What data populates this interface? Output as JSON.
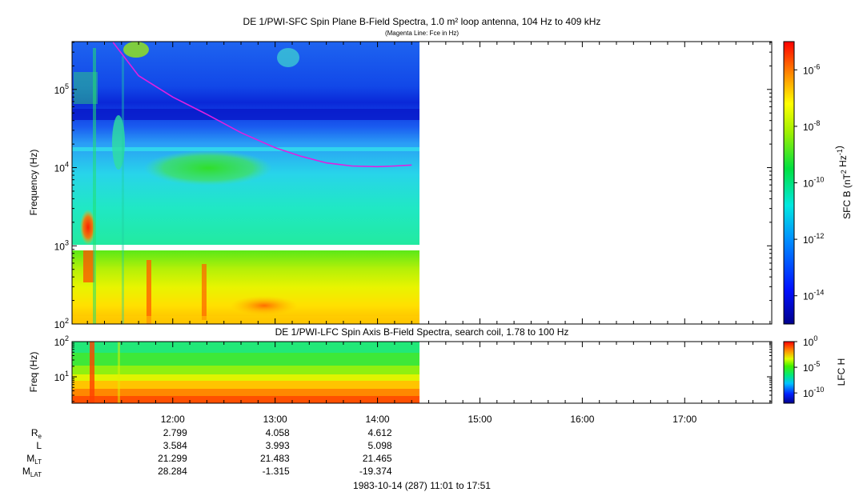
{
  "chart_data": [
    {
      "type": "heatmap",
      "title": "DE 1/PWI-SFC  Spin Plane B-Field Spectra, 1.0 m² loop antenna, 104 Hz to 409 kHz",
      "subtitle": "(Magenta Line: Fce in Hz)",
      "ylabel": "Frequency (Hz)",
      "yscale": "log",
      "ylim": [
        100,
        409000
      ],
      "ytick_labels": [
        "10^2",
        "10^3",
        "10^4",
        "10^5"
      ],
      "xlim": [
        "11:01",
        "17:51"
      ],
      "data_end": "14:23",
      "colorbar": {
        "label": "SFC B (nT^2 Hz^-1)",
        "scale": "log",
        "range": [
          1e-15,
          1e-05
        ],
        "tick_labels": [
          "10^-6",
          "10^-8",
          "10^-10",
          "10^-12",
          "10^-14"
        ]
      },
      "series": [
        {
          "name": "Fce in Hz",
          "color": "#e020e0",
          "points": [
            {
              "t": "11:25",
              "f": 400000
            },
            {
              "t": "11:40",
              "f": 150000
            },
            {
              "t": "12:00",
              "f": 80000
            },
            {
              "t": "12:20",
              "f": 48000
            },
            {
              "t": "12:40",
              "f": 28000
            },
            {
              "t": "13:00",
              "f": 18000
            },
            {
              "t": "13:15",
              "f": 14000
            },
            {
              "t": "13:30",
              "f": 11500
            },
            {
              "t": "13:45",
              "f": 10500
            },
            {
              "t": "14:00",
              "f": 10300
            },
            {
              "t": "14:10",
              "f": 10500
            },
            {
              "t": "14:20",
              "f": 10800
            }
          ]
        }
      ]
    },
    {
      "type": "heatmap",
      "title": "DE 1/PWI-LFC  Spin Axis B-Field Spectra, search coil, 1.78 to 100 Hz",
      "ylabel": "Freq (Hz)",
      "yscale": "log",
      "ylim": [
        1.78,
        100
      ],
      "ytick_labels": [
        "10^1",
        "10^2"
      ],
      "xlim": [
        "11:01",
        "17:51"
      ],
      "data_end": "14:23",
      "colorbar": {
        "label": "LFC H",
        "scale": "log",
        "range": [
          1e-12,
          1
        ],
        "tick_labels": [
          "10^0",
          "10^-5",
          "10^-10"
        ]
      }
    }
  ],
  "time_axis": {
    "tick_labels": [
      "12:00",
      "13:00",
      "14:00",
      "15:00",
      "16:00",
      "17:00"
    ],
    "footer": "1983-10-14 (287) 11:01 to 17:51"
  },
  "ephemeris": {
    "labels": [
      {
        "main": "R",
        "sub": "e"
      },
      {
        "main": "L",
        "sub": ""
      },
      {
        "main": "M",
        "sub": "LT"
      },
      {
        "main": "M",
        "sub": "LAT"
      }
    ],
    "columns": [
      {
        "time": "12:00",
        "values": [
          "2.799",
          "3.584",
          "21.299",
          "28.284"
        ]
      },
      {
        "time": "13:00",
        "values": [
          "4.058",
          "3.993",
          "21.483",
          "-1.315"
        ]
      },
      {
        "time": "14:00",
        "values": [
          "4.612",
          "5.098",
          "21.465",
          "-19.374"
        ]
      }
    ]
  }
}
